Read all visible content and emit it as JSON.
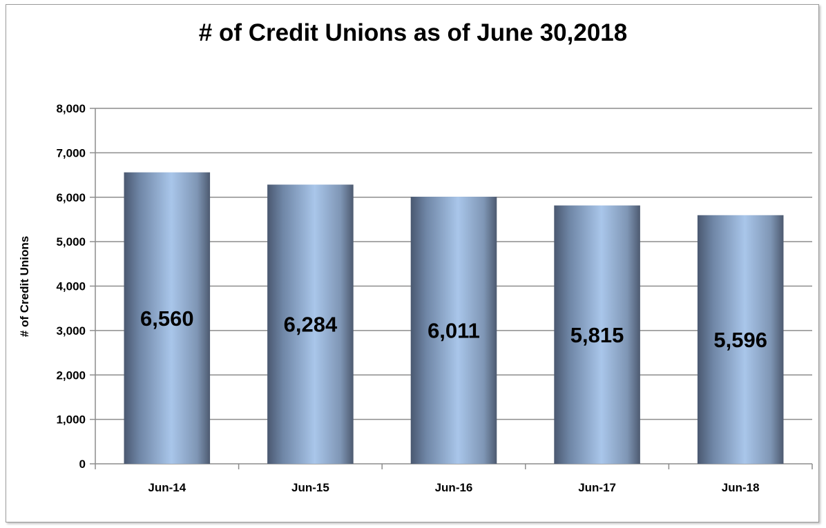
{
  "chart_data": {
    "type": "bar",
    "title": "# of Credit Unions as of June 30,2018",
    "xlabel": "",
    "ylabel": "# of Credit Unions",
    "categories": [
      "Jun-14",
      "Jun-15",
      "Jun-16",
      "Jun-17",
      "Jun-18"
    ],
    "values": [
      6560,
      6284,
      6011,
      5815,
      5596
    ],
    "value_labels": [
      "6,560",
      "6,284",
      "6,011",
      "5,815",
      "5,596"
    ],
    "ylim": [
      0,
      8000
    ],
    "yticks": [
      0,
      1000,
      2000,
      3000,
      4000,
      5000,
      6000,
      7000,
      8000
    ],
    "ytick_labels": [
      "0",
      "1,000",
      "2,000",
      "3,000",
      "4,000",
      "5,000",
      "6,000",
      "7,000",
      "8,000"
    ],
    "grid": true,
    "legend": "none",
    "colors": {
      "bar_edge": "#4a5870",
      "bar_mid": "#a9c6ea",
      "grid": "#8c8c8c"
    }
  }
}
